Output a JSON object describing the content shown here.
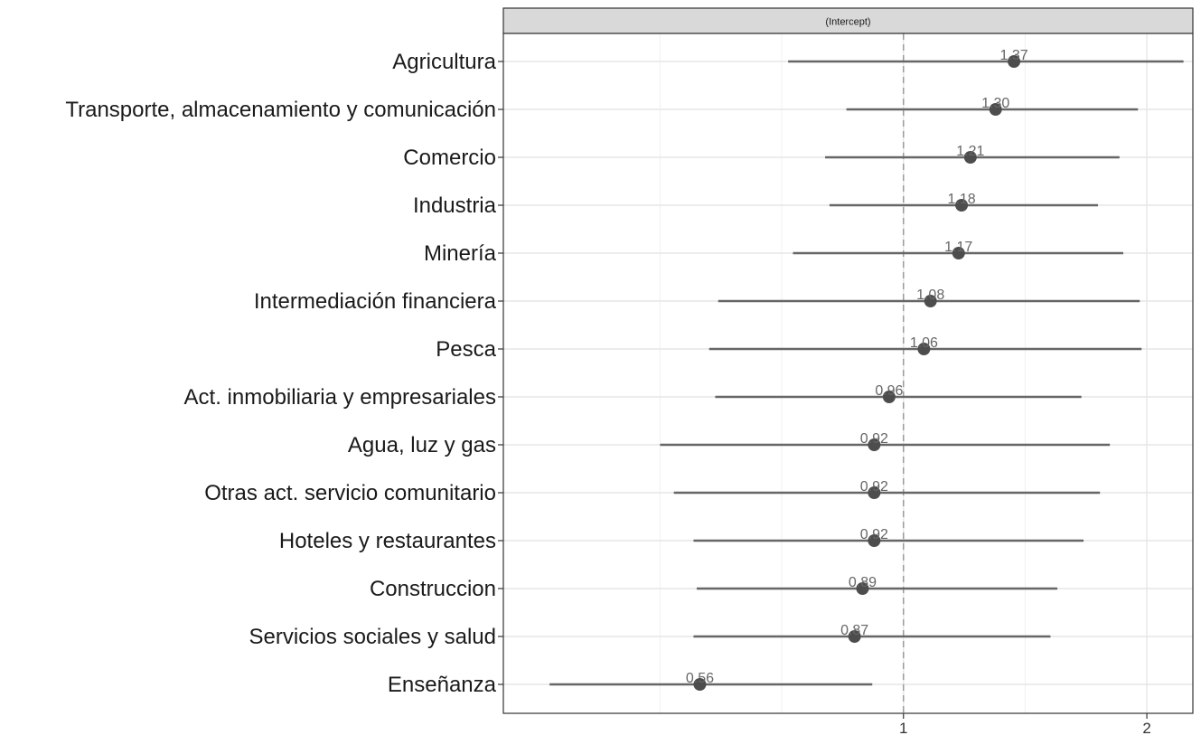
{
  "chart_data": {
    "type": "forest",
    "facet_label": "(Intercept)",
    "x_scale": "log",
    "xlim": [
      0.32,
      2.28
    ],
    "x_ticks": [
      {
        "value": 1,
        "label": "1"
      },
      {
        "value": 2,
        "label": "2"
      }
    ],
    "minor_gridlines": [
      0.5,
      0.707,
      1.414
    ],
    "reference_line": 1,
    "grid": true,
    "point_color": "#4d4d4d",
    "line_color": "#666666",
    "rows": [
      {
        "category": "Agricultura",
        "estimate": 1.37,
        "label": "1.37",
        "low": 0.72,
        "high": 2.22
      },
      {
        "category": "Transporte, almacenamiento y comunicación",
        "estimate": 1.3,
        "label": "1.30",
        "low": 0.85,
        "high": 1.95
      },
      {
        "category": "Comercio",
        "estimate": 1.21,
        "label": "1.21",
        "low": 0.8,
        "high": 1.85
      },
      {
        "category": "Industria",
        "estimate": 1.18,
        "label": "1.18",
        "low": 0.81,
        "high": 1.74
      },
      {
        "category": "Minería",
        "estimate": 1.17,
        "label": "1.17",
        "low": 0.73,
        "high": 1.87
      },
      {
        "category": "Intermediación financiera",
        "estimate": 1.08,
        "label": "1.08",
        "low": 0.59,
        "high": 1.96
      },
      {
        "category": "Pesca",
        "estimate": 1.06,
        "label": "1.06",
        "low": 0.575,
        "high": 1.97
      },
      {
        "category": "Act. inmobiliaria y empresariales",
        "estimate": 0.96,
        "label": "0.96",
        "low": 0.585,
        "high": 1.66
      },
      {
        "category": "Agua, luz y gas",
        "estimate": 0.92,
        "label": "0.92",
        "low": 0.5,
        "high": 1.8
      },
      {
        "category": "Otras act. servicio comunitario",
        "estimate": 0.92,
        "label": "0.92",
        "low": 0.52,
        "high": 1.75
      },
      {
        "category": "Hoteles y restaurantes",
        "estimate": 0.92,
        "label": "0.92",
        "low": 0.55,
        "high": 1.67
      },
      {
        "category": "Construccion",
        "estimate": 0.89,
        "label": "0.89",
        "low": 0.555,
        "high": 1.55
      },
      {
        "category": "Servicios sociales y salud",
        "estimate": 0.87,
        "label": "0.87",
        "low": 0.55,
        "high": 1.52
      },
      {
        "category": "Enseñanza",
        "estimate": 0.56,
        "label": "0.56",
        "low": 0.365,
        "high": 0.915
      }
    ]
  }
}
